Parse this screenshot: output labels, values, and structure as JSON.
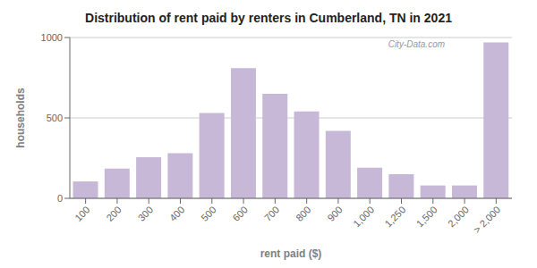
{
  "chart_data": {
    "type": "bar",
    "title": "Distribution of rent paid by renters in Cumberland, TN in 2021",
    "xlabel": "rent paid ($)",
    "ylabel": "households",
    "categories": [
      "100",
      "200",
      "300",
      "400",
      "500",
      "600",
      "700",
      "800",
      "900",
      "1,000",
      "1,250",
      "1,500",
      "2,000",
      "> 2,000"
    ],
    "values": [
      105,
      185,
      255,
      280,
      530,
      810,
      650,
      540,
      420,
      190,
      150,
      80,
      80,
      970
    ],
    "color": "#c8b8d8",
    "ylim": [
      0,
      1000
    ],
    "yticks": [
      0,
      500,
      1000
    ],
    "grid": true,
    "annotations": [
      "City-Data.com"
    ]
  }
}
